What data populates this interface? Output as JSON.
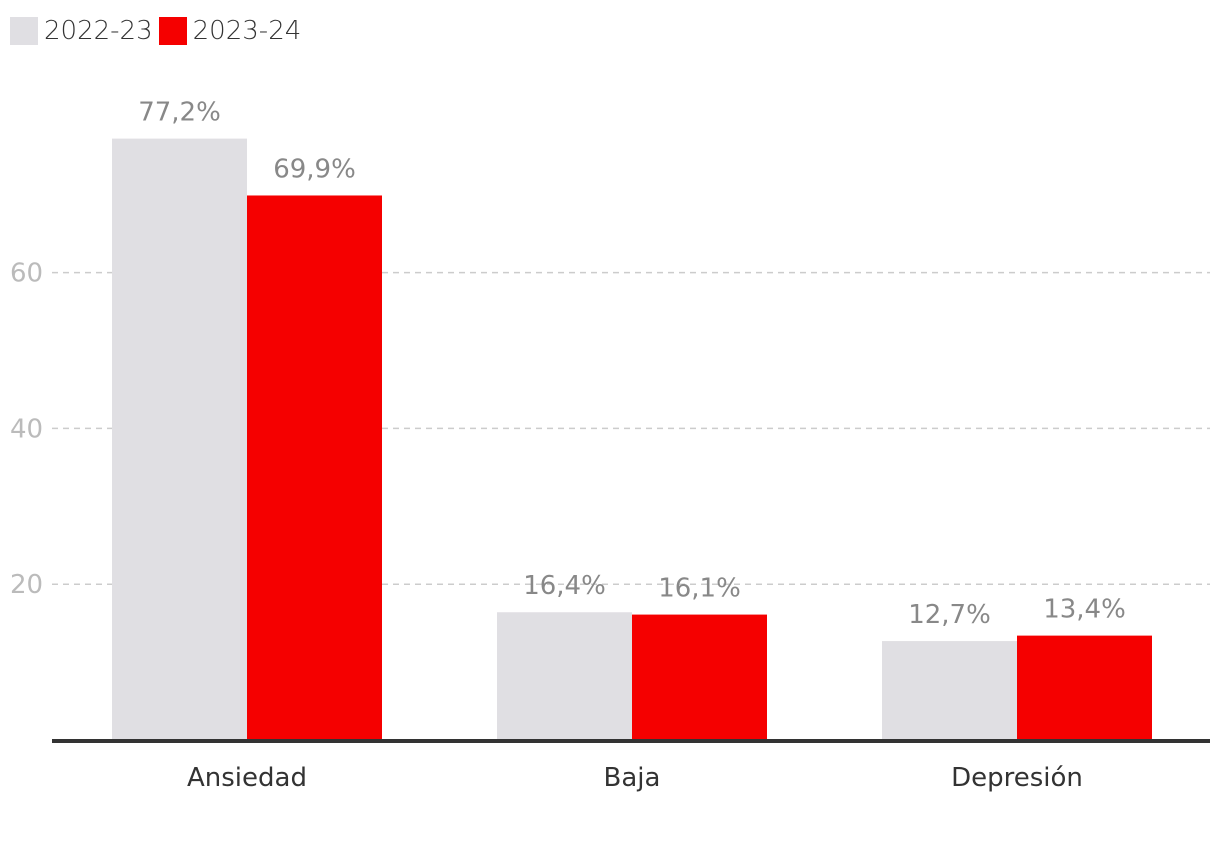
{
  "chart_data": {
    "type": "bar",
    "categories": [
      "Ansiedad",
      "Baja",
      "Depresión"
    ],
    "series": [
      {
        "name": "2022-23",
        "values": [
          77.2,
          16.4,
          12.7
        ],
        "labels": [
          "77,2%",
          "16,4%",
          "12,7%"
        ],
        "color": "#e0dfe3"
      },
      {
        "name": "2023-24",
        "values": [
          69.9,
          16.1,
          13.4
        ],
        "labels": [
          "69,9%",
          "16,1%",
          "13,4%"
        ],
        "color": "#f50000"
      }
    ],
    "yticks": [
      20,
      40,
      60
    ],
    "ylim": [
      0,
      80
    ],
    "grid": true,
    "legend": "top-left",
    "title": "",
    "xlabel": "",
    "ylabel": ""
  }
}
